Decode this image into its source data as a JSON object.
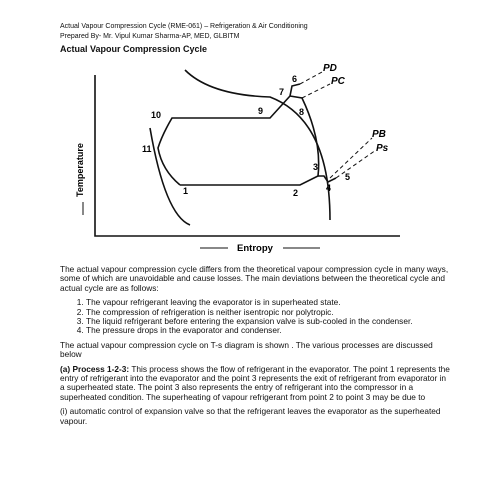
{
  "header": {
    "line1": "Actual Vapour Compression Cycle (RME-061) – Refrigeration & Air Conditioning",
    "line2": "Prepared By- Mr. Vipul Kumar Sharma-AP, MED, GLBITM"
  },
  "heading": "Actual Vapour Compression Cycle",
  "figure": {
    "points": [
      "1",
      "2",
      "3",
      "4",
      "5",
      "6",
      "7",
      "8",
      "9",
      "10",
      "11"
    ],
    "pressures": [
      "PD",
      "PC",
      "PB",
      "Ps"
    ],
    "y_axis": "Temperature",
    "x_axis": "Entropy"
  },
  "intro": "The actual vapour compression cycle differs from the theoretical vapour compression cycle in many ways, some of which are unavoidable and cause losses. The main deviations between the theoretical cycle and actual cycle are as follows:",
  "list": [
    "The vapour refrigerant leaving the evaporator is in superheated state.",
    "The compression of refrigeration is neither isentropic nor polytropic.",
    "The liquid refrigerant before entering the expansion valve is sub-cooled in the condenser.",
    "The pressure drops in the evaporator and condenser."
  ],
  "para2": "The actual vapour compression cycle on T-s diagram is shown . The various processes are discussed below",
  "process": {
    "title": "(a) Process 1-2-3:",
    "text": " This process shows the flow of refrigerant in the evaporator. The point 1 represents the entry of refrigerant into the evaporator and the point 3 represents the exit of refrigerant from evaporator in a superheated state. The point 3 also represents the entry of refrigerant into the compressor in a superheated condition. The superheating of vapour refrigerant from point 2 to point 3 may be due to"
  },
  "item_i": "(i) automatic control of expansion valve so that the refrigerant leaves the evaporator as the superheated vapour."
}
